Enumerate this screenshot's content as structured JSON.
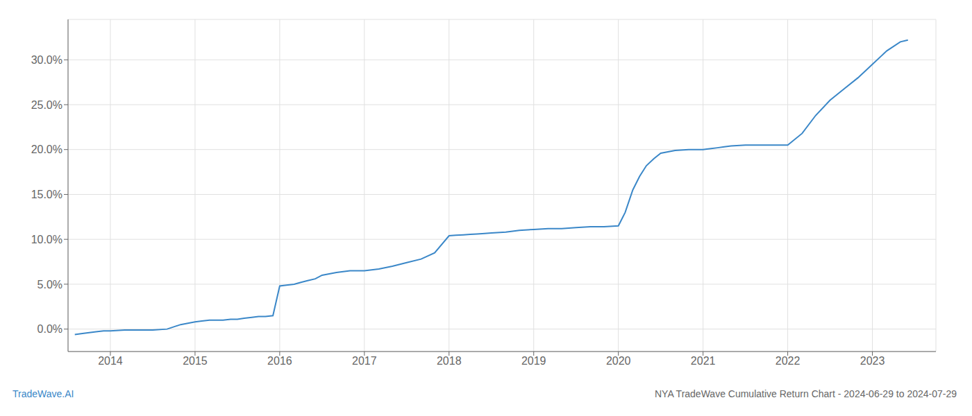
{
  "chart_data": {
    "type": "line",
    "title": "NYA TradeWave Cumulative Return Chart - 2024-06-29 to 2024-07-29",
    "annotations": [
      "TradeWave.AI"
    ],
    "color": "#3a87c8",
    "grid": true,
    "x": [
      2013.58,
      2013.67,
      2013.75,
      2013.83,
      2013.92,
      2014.0,
      2014.17,
      2014.33,
      2014.5,
      2014.67,
      2014.83,
      2015.0,
      2015.08,
      2015.17,
      2015.25,
      2015.33,
      2015.42,
      2015.5,
      2015.58,
      2015.67,
      2015.75,
      2015.83,
      2015.92,
      2016.0,
      2016.08,
      2016.17,
      2016.25,
      2016.33,
      2016.42,
      2016.5,
      2016.67,
      2016.83,
      2017.0,
      2017.17,
      2017.33,
      2017.5,
      2017.67,
      2017.83,
      2018.0,
      2018.08,
      2018.17,
      2018.25,
      2018.33,
      2018.42,
      2018.5,
      2018.67,
      2018.83,
      2019.0,
      2019.17,
      2019.33,
      2019.5,
      2019.67,
      2019.83,
      2020.0,
      2020.08,
      2020.17,
      2020.25,
      2020.33,
      2020.42,
      2020.5,
      2020.67,
      2020.83,
      2021.0,
      2021.08,
      2021.17,
      2021.25,
      2021.33,
      2021.5,
      2021.67,
      2021.83,
      2022.0,
      2022.17,
      2022.33,
      2022.5,
      2022.67,
      2022.83,
      2023.0,
      2023.17,
      2023.33,
      2023.42
    ],
    "values": [
      -0.006,
      -0.005,
      -0.004,
      -0.003,
      -0.002,
      -0.002,
      -0.001,
      -0.001,
      -0.001,
      0.0,
      0.005,
      0.008,
      0.009,
      0.01,
      0.01,
      0.01,
      0.011,
      0.011,
      0.012,
      0.013,
      0.014,
      0.014,
      0.015,
      0.048,
      0.049,
      0.05,
      0.052,
      0.054,
      0.056,
      0.06,
      0.063,
      0.065,
      0.065,
      0.067,
      0.07,
      0.074,
      0.078,
      0.085,
      0.104,
      0.1045,
      0.105,
      0.1055,
      0.106,
      0.1065,
      0.107,
      0.108,
      0.11,
      0.111,
      0.112,
      0.112,
      0.113,
      0.114,
      0.114,
      0.115,
      0.13,
      0.155,
      0.17,
      0.182,
      0.19,
      0.196,
      0.199,
      0.2,
      0.2,
      0.201,
      0.202,
      0.203,
      0.204,
      0.205,
      0.205,
      0.205,
      0.205,
      0.218,
      0.238,
      0.255,
      0.268,
      0.28,
      0.295,
      0.31,
      0.32,
      0.322
    ],
    "xlim": [
      2013.5,
      2023.75
    ],
    "xticks": [
      2014,
      2015,
      2016,
      2017,
      2018,
      2019,
      2020,
      2021,
      2022,
      2023
    ],
    "ylim": [
      -0.025,
      0.345
    ],
    "yticks": [
      {
        "value": 0.0,
        "label": "0.0%"
      },
      {
        "value": 0.05,
        "label": "5.0%"
      },
      {
        "value": 0.1,
        "label": "10.0%"
      },
      {
        "value": 0.15,
        "label": "15.0%"
      },
      {
        "value": 0.2,
        "label": "20.0%"
      },
      {
        "value": 0.25,
        "label": "25.0%"
      },
      {
        "value": 0.3,
        "label": "30.0%"
      }
    ]
  }
}
